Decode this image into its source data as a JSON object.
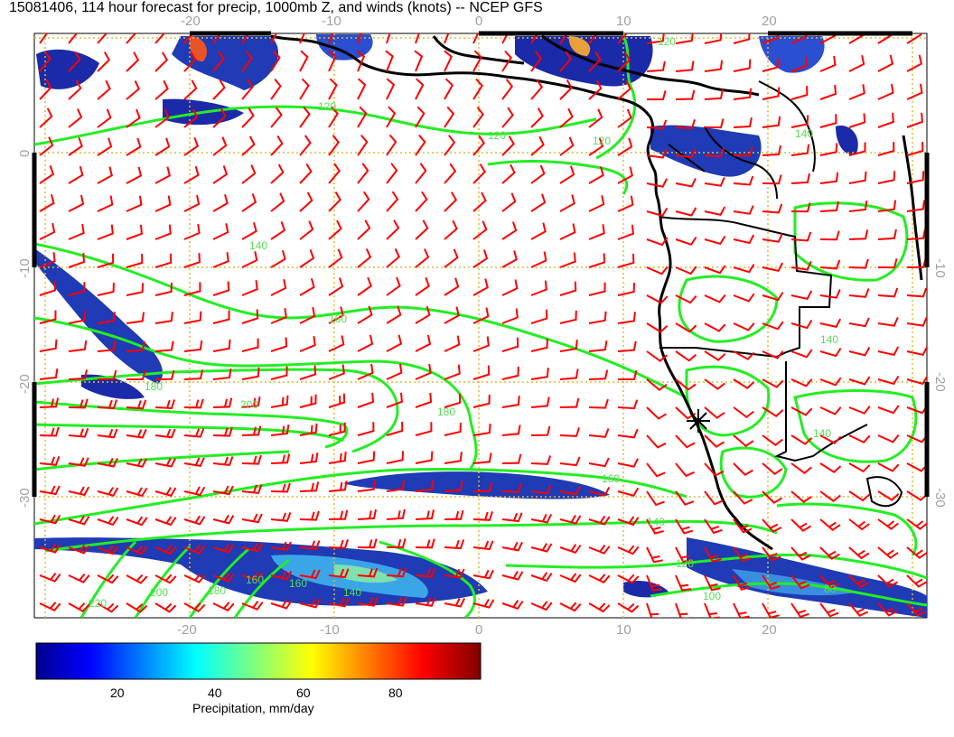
{
  "title": "15081406, 114 hour forecast for precip, 1000mb Z, and winds (knots) -- NCEP GFS",
  "lon_ticks_top": [
    "-20",
    "-10",
    "0",
    "10",
    "20"
  ],
  "lon_ticks_bottom": [
    "-20",
    "-10",
    "0",
    "10",
    "20"
  ],
  "lat_ticks_left": [
    "0",
    "-10",
    "-20",
    "-30"
  ],
  "lat_ticks_right": [
    "-10",
    "-20",
    "-30"
  ],
  "contour_labels": [
    "120",
    "120",
    "120",
    "140",
    "160",
    "180",
    "180",
    "200",
    "140",
    "160",
    "140",
    "120",
    "100",
    "80",
    "140",
    "220",
    "200",
    "180",
    "160",
    "160",
    "140",
    "120",
    "140"
  ],
  "colorbar": {
    "ticks": [
      "20",
      "40",
      "60",
      "80"
    ],
    "label": "Precipitation, mm/day"
  },
  "colors": {
    "wind_barb": "#ff0000",
    "contour": "#22ee22",
    "coast": "#000000",
    "grid": "#ddbb33"
  },
  "chart_data": {
    "type": "map",
    "variables": [
      "precip",
      "1000mb Z",
      "winds (knots)"
    ],
    "lon_range": [
      -30,
      30
    ],
    "lat_range": [
      -40,
      10
    ],
    "colorbar_range": [
      0,
      100
    ],
    "grid": true
  }
}
